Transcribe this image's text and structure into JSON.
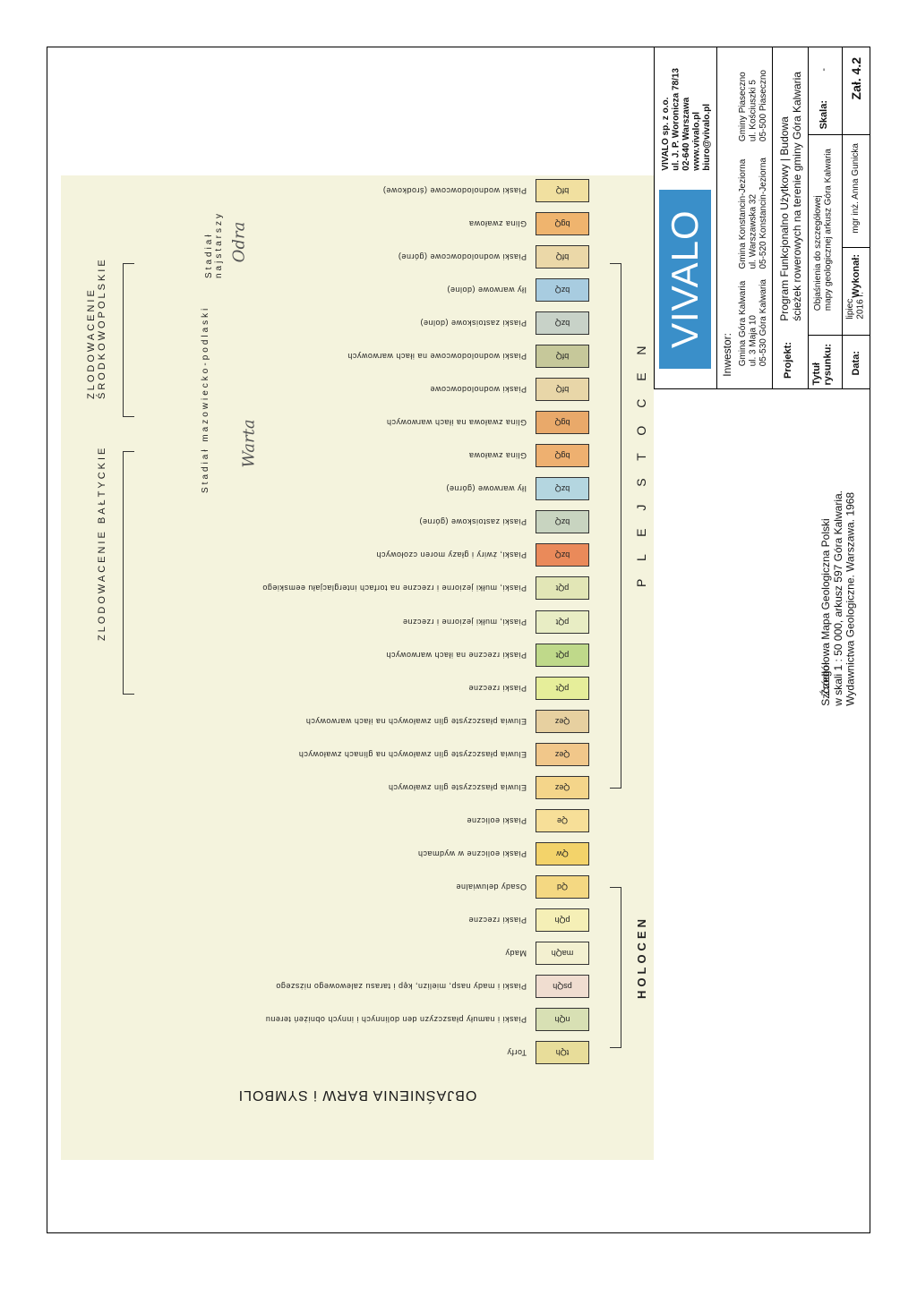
{
  "legend": {
    "title": "OBJAŚNIENIA BARW i SYMBOLI",
    "holocen_label": "HOLOCEN",
    "plejstocen_label": "P L E J S T O C E N",
    "zlodowacenie_baltyckie": "ZLODOWACENIE BAŁTYCKIE",
    "zlodowacenie_srodkowopolskie": "ZLODOWACENIE ŚRODKOWOPOLSKIE",
    "stadial_mazowiecko": "Stadiał mazowiecko-podlaski",
    "stadial_najstarszy": "Stadiał najstarszy",
    "rows": [
      {
        "symbol": "tQh",
        "desc": "Torfy",
        "color": "#e8dd9a"
      },
      {
        "symbol": "nQh",
        "desc": "Piaski i namuły płaszczyzn den dolinnych i innych obniżeń terenu",
        "color": "#d8e0b4"
      },
      {
        "symbol": "psQh",
        "desc": "Piaski i mady nasp, mielizn, kęp i tarasu zalewowego niższego",
        "color": "#f0ddd0"
      },
      {
        "symbol": "maQh",
        "desc": "Mady",
        "color": "#f3f0d0"
      },
      {
        "symbol": "pQh",
        "desc": "Piaski rzeczne",
        "color": "#f5efb6"
      },
      {
        "symbol": "Qd",
        "desc": "Osady deluwialne",
        "color": "#f4d882"
      },
      {
        "symbol": "Qw",
        "desc": "Piaski eoliczne w wydmach",
        "color": "#f3d36a"
      },
      {
        "symbol": "Qe",
        "desc": "Piaski eoliczne",
        "color": "#f7df98"
      },
      {
        "symbol": "Qez",
        "desc": "Eluwia płaszczyste glin zwałowych",
        "color": "#f4d58a"
      },
      {
        "symbol": "Qez",
        "desc": "Eluwia płaszczyste glin zwałowych na glinach zwałowych",
        "color": "#f1c78a"
      },
      {
        "symbol": "Qez",
        "desc": "Eluwia płaszczyste glin zwałowych na iłach warwowych",
        "color": "#e7d0a0"
      },
      {
        "symbol": "pQt",
        "desc": "Piaski rzeczne",
        "color": "#e6ee9a"
      },
      {
        "symbol": "pQt",
        "desc": "Piaski rzeczne na iłach warwowych",
        "color": "#bfd98a"
      },
      {
        "symbol": "pQt",
        "desc": "Piaski, mułki jeziorne i rzeczne",
        "color": "#e8edc4"
      },
      {
        "symbol": "pQt",
        "desc": "Piaski, mułki jeziorne i rzeczne na torfach interglacjału eemskiego",
        "color": "#e2e6b6"
      },
      {
        "symbol": "bzQ",
        "desc": "Piaski, żwiry i głazy moren czołowych",
        "color": "#ea8a5a"
      },
      {
        "symbol": "bzQ",
        "desc": "Piaski zastoiskowe (górne)",
        "color": "#c8d4c0"
      },
      {
        "symbol": "bzQ",
        "desc": "Iły warwowe (górne)",
        "color": "#b4d6e0"
      },
      {
        "symbol": "bgQ",
        "desc": "Glina zwałowa",
        "color": "#eeb070"
      },
      {
        "symbol": "bgQ",
        "desc": "Glina zwałowa na iłach warwowych",
        "color": "#e9a96a"
      },
      {
        "symbol": "bfQ",
        "desc": "Piaski wodnolodowcowe",
        "color": "#e8d6a8"
      },
      {
        "symbol": "bfQ",
        "desc": "Piaski wodnolodowcowe na iłach warwowych",
        "color": "#c6c89a"
      },
      {
        "symbol": "bzQ",
        "desc": "Piaski zastoiskowe (dolne)",
        "color": "#c8d2c8"
      },
      {
        "symbol": "bzQ",
        "desc": "Iły warwowe (dolne)",
        "color": "#a8cce0"
      },
      {
        "symbol": "bfQ",
        "desc": "Piaski wodnolodowcowe (górne)",
        "color": "#ebd8a8"
      },
      {
        "symbol": "bgQ",
        "desc": "Glina zwałowa",
        "color": "#efb46e"
      },
      {
        "symbol": "bfQ",
        "desc": "Piaski wodnolodowcowe (środkowe)",
        "color": "#f1e0a0"
      }
    ]
  },
  "titleblock": {
    "company": "VIVALO sp. z o.o.",
    "company_address": "ul. J. P. Woronicza 78/13",
    "company_city": "02-640 Warszawa",
    "company_web": "www.vivalo.pl",
    "company_email": "biuro@vivalo.pl",
    "logo_text": "VIVALO",
    "investor_label": "Inwestor:",
    "investor1_name": "Gmina Góra Kalwaria",
    "investor1_addr": "ul. 3 Maja 10",
    "investor1_city": "05-530 Góra Kalwaria",
    "investor2_name": "Gmina Konstancin-Jeziorna",
    "investor2_addr": "ul. Warszawska 32",
    "investor2_city": "05-520 Konstancin-Jeziorna",
    "investor3_name": "Gminy Piaseczno",
    "investor3_addr": "ul. Kościuszki 5",
    "investor3_city": "05-500 Piaseczno",
    "project_label": "Projekt:",
    "project_line1": "Program Funkcjonalno Użytkowy | Budowa",
    "project_line2": "ścieżek rowerowych na terenie gminy Góra Kalwaria",
    "title_label_1": "Tytuł",
    "title_label_2": "rysunku:",
    "title_line1": "Objaśnienia do szczegółowej",
    "title_line2": "mapy geologicznej arkusz Góra Kalwaria",
    "scale_label": "Skala:",
    "scale_value": "-",
    "date_label": "Data:",
    "date_value_1": "lipiec",
    "date_value_2": "2016 r.",
    "author_label": "Wykonał:",
    "author_value": "mgr inż. Anna Gunicka",
    "sheet": "Zał. 4.2"
  },
  "source": {
    "label": "Źródło:",
    "line1": "Szczegółowa Mapa Geologiczna Polski",
    "line2": "w skali 1 : 50 000, arkusz 597 Góra Kalwaria.",
    "line3": "Wydawnictwa Geologiczne. Warszawa. 1968"
  }
}
